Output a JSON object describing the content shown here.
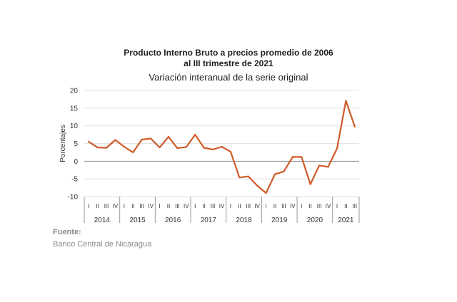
{
  "chart_data": {
    "type": "line",
    "title_line1": "Producto Interno Bruto a precios promedio de 2006",
    "title_line2": "al III trimestre de 2021",
    "subtitle": "Variación interanual de la serie original",
    "ylabel": "Porcentajes",
    "ylim": [
      -10,
      20
    ],
    "yticks": [
      "20",
      "15",
      "10",
      "5",
      "0",
      "-5",
      "-10"
    ],
    "ytick_values": [
      20,
      15,
      10,
      5,
      0,
      -5,
      -10
    ],
    "quarter_labels": [
      "I",
      "II",
      "III",
      "IV"
    ],
    "years": [
      "2014",
      "2015",
      "2016",
      "2017",
      "2018",
      "2019",
      "2020",
      "2021"
    ],
    "quarters_per_year": [
      4,
      4,
      4,
      4,
      4,
      4,
      4,
      3
    ],
    "grid": true,
    "line_color": "#d05a2a",
    "grid_color": "#e3e3e3",
    "zero_line_color": "#8c8c8c",
    "values": [
      5.5,
      3.9,
      3.8,
      6.0,
      4.1,
      2.5,
      6.1,
      6.4,
      3.9,
      6.9,
      3.7,
      4.0,
      7.5,
      3.8,
      3.3,
      4.1,
      2.7,
      -4.6,
      -4.3,
      -6.9,
      -9.0,
      -3.7,
      -2.9,
      1.2,
      1.2,
      -6.5,
      -1.2,
      -1.6,
      3.6,
      17.1,
      9.8
    ]
  },
  "source": {
    "label": "Fuente:",
    "text": "Banco Central de Nicaragua"
  }
}
